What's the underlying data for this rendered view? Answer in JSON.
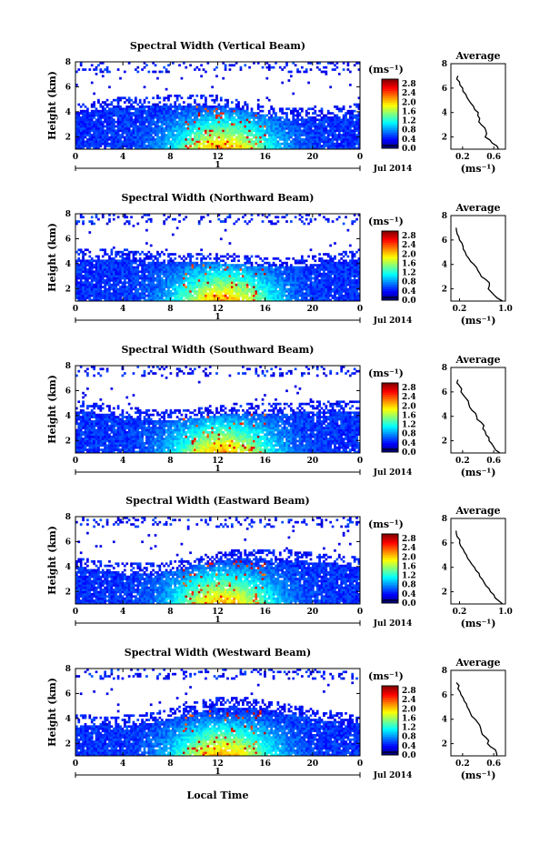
{
  "figure": {
    "xlabel": "Local Time",
    "date_label": "Jul 2014",
    "day_label": "1",
    "unit_label": "(ms⁻¹)",
    "avg_title": "Average",
    "avg_xlabel": "(ms⁻¹)",
    "ylabel": "Height (km)"
  },
  "chart_data": [
    {
      "type": "heatmap",
      "title": "Spectral Width (Vertical Beam)",
      "xlabel": "Local Time",
      "ylabel": "Height (km)",
      "x_ticks": [
        "0",
        "4",
        "8",
        "12",
        "16",
        "20",
        "0"
      ],
      "y_ticks": [
        "2",
        "4",
        "6",
        "8"
      ],
      "xlim": [
        0,
        24
      ],
      "ylim": [
        1,
        8
      ],
      "colorbar": {
        "label": "(ms⁻¹)",
        "ticks": [
          "0.0",
          "0.4",
          "0.8",
          "1.2",
          "1.6",
          "2.0",
          "2.4",
          "2.8"
        ],
        "range": [
          0.0,
          3.0
        ]
      },
      "average_profile": {
        "title": "Average",
        "xlabel": "(ms⁻¹)",
        "x_ticks": [
          "0.2",
          "0.6"
        ],
        "xlim": [
          0.05,
          0.75
        ],
        "y_ticks": [
          "2",
          "4",
          "6",
          "8"
        ],
        "height_km": [
          1.0,
          1.5,
          2.0,
          2.5,
          3.0,
          3.5,
          4.0,
          4.5,
          5.0,
          5.5,
          6.0,
          6.5,
          7.0
        ],
        "width_ms": [
          0.66,
          0.58,
          0.49,
          0.5,
          0.44,
          0.42,
          0.4,
          0.34,
          0.28,
          0.24,
          0.2,
          0.16,
          0.14
        ]
      }
    },
    {
      "type": "heatmap",
      "title": "Spectral Width (Northward Beam)",
      "xlabel": "Local Time",
      "ylabel": "Height (km)",
      "x_ticks": [
        "0",
        "4",
        "8",
        "12",
        "16",
        "20",
        "0"
      ],
      "y_ticks": [
        "2",
        "4",
        "6",
        "8"
      ],
      "xlim": [
        0,
        24
      ],
      "ylim": [
        1,
        8
      ],
      "colorbar": {
        "label": "(ms⁻¹)",
        "ticks": [
          "0.0",
          "0.4",
          "0.8",
          "1.2",
          "1.6",
          "2.0",
          "2.4",
          "2.8"
        ],
        "range": [
          0.0,
          3.0
        ]
      },
      "average_profile": {
        "title": "Average",
        "xlabel": "(ms⁻¹)",
        "x_ticks": [
          "0.2",
          "1.0"
        ],
        "xlim": [
          0.05,
          1.0
        ],
        "y_ticks": [
          "2",
          "4",
          "6",
          "8"
        ],
        "height_km": [
          1.0,
          1.5,
          2.0,
          2.5,
          3.0,
          3.5,
          4.0,
          4.5,
          5.0,
          5.5,
          6.0,
          6.5,
          7.0
        ],
        "width_ms": [
          0.95,
          0.8,
          0.7,
          0.72,
          0.58,
          0.52,
          0.45,
          0.36,
          0.3,
          0.26,
          0.2,
          0.16,
          0.14
        ]
      }
    },
    {
      "type": "heatmap",
      "title": "Spectral Width (Southward Beam)",
      "xlabel": "Local Time",
      "ylabel": "Height (km)",
      "x_ticks": [
        "0",
        "4",
        "8",
        "12",
        "16",
        "20",
        "0"
      ],
      "y_ticks": [
        "2",
        "4",
        "6",
        "8"
      ],
      "xlim": [
        0,
        24
      ],
      "ylim": [
        1,
        8
      ],
      "colorbar": {
        "label": "(ms⁻¹)",
        "ticks": [
          "0.0",
          "0.4",
          "0.8",
          "1.2",
          "1.6",
          "2.0",
          "2.4",
          "2.8"
        ],
        "range": [
          0.0,
          3.0
        ]
      },
      "average_profile": {
        "title": "Average",
        "xlabel": "(ms⁻¹)",
        "x_ticks": [
          "0.2",
          "0.6"
        ],
        "xlim": [
          0.05,
          0.75
        ],
        "y_ticks": [
          "2",
          "4",
          "6",
          "8"
        ],
        "height_km": [
          1.0,
          1.5,
          2.0,
          2.5,
          3.0,
          3.5,
          4.0,
          4.5,
          5.0,
          5.5,
          6.0,
          6.5,
          7.0
        ],
        "width_ms": [
          0.68,
          0.6,
          0.54,
          0.5,
          0.46,
          0.44,
          0.38,
          0.32,
          0.28,
          0.24,
          0.18,
          0.16,
          0.14
        ]
      }
    },
    {
      "type": "heatmap",
      "title": "Spectral Width (Eastward Beam)",
      "xlabel": "Local Time",
      "ylabel": "Height (km)",
      "x_ticks": [
        "0",
        "4",
        "8",
        "12",
        "16",
        "20",
        "0"
      ],
      "y_ticks": [
        "2",
        "4",
        "6",
        "8"
      ],
      "xlim": [
        0,
        24
      ],
      "ylim": [
        1,
        8
      ],
      "colorbar": {
        "label": "(ms⁻¹)",
        "ticks": [
          "0.0",
          "0.4",
          "0.8",
          "1.2",
          "1.6",
          "2.0",
          "2.4",
          "2.8"
        ],
        "range": [
          0.0,
          3.0
        ]
      },
      "average_profile": {
        "title": "Average",
        "xlabel": "(ms⁻¹)",
        "x_ticks": [
          "0.2",
          "1.0"
        ],
        "xlim": [
          0.05,
          1.0
        ],
        "y_ticks": [
          "2",
          "4",
          "6",
          "8"
        ],
        "height_km": [
          1.0,
          1.5,
          2.0,
          2.5,
          3.0,
          3.5,
          4.0,
          4.5,
          5.0,
          5.5,
          6.0,
          6.5,
          7.0
        ],
        "width_ms": [
          0.95,
          0.82,
          0.74,
          0.66,
          0.6,
          0.54,
          0.46,
          0.38,
          0.32,
          0.26,
          0.2,
          0.16,
          0.14
        ]
      }
    },
    {
      "type": "heatmap",
      "title": "Spectral Width (Westward Beam)",
      "xlabel": "Local Time",
      "ylabel": "Height (km)",
      "x_ticks": [
        "0",
        "4",
        "8",
        "12",
        "16",
        "20",
        "0"
      ],
      "y_ticks": [
        "2",
        "4",
        "6",
        "8"
      ],
      "xlim": [
        0,
        24
      ],
      "ylim": [
        1,
        8
      ],
      "colorbar": {
        "label": "(ms⁻¹)",
        "ticks": [
          "0.0",
          "0.4",
          "0.8",
          "1.2",
          "1.6",
          "2.0",
          "2.4",
          "2.8"
        ],
        "range": [
          0.0,
          3.0
        ]
      },
      "average_profile": {
        "title": "Average",
        "xlabel": "(ms⁻¹)",
        "x_ticks": [
          "0.2",
          "0.6"
        ],
        "xlim": [
          0.05,
          0.75
        ],
        "y_ticks": [
          "2",
          "4",
          "6",
          "8"
        ],
        "height_km": [
          1.0,
          1.5,
          2.0,
          2.5,
          3.0,
          3.5,
          4.0,
          4.5,
          5.0,
          5.5,
          6.0,
          6.5,
          7.0
        ],
        "width_ms": [
          0.64,
          0.62,
          0.52,
          0.5,
          0.44,
          0.42,
          0.36,
          0.3,
          0.26,
          0.22,
          0.18,
          0.14,
          0.12
        ]
      }
    }
  ]
}
